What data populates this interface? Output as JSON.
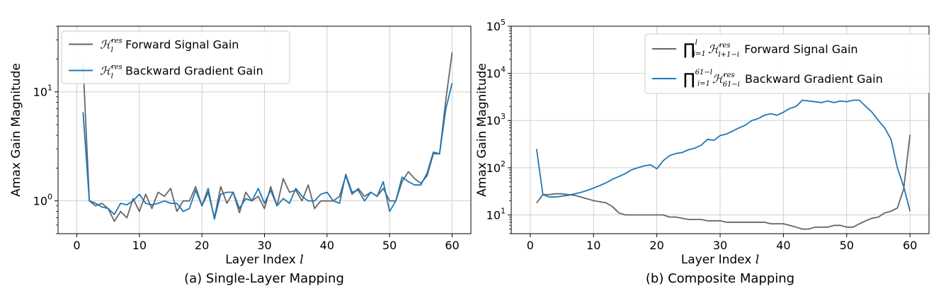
{
  "chart_data": [
    {
      "type": "line",
      "caption": "(a) Single-Layer Mapping",
      "xlabel": "Layer Index l",
      "ylabel": "Amax Gain Magnitude",
      "yscale": "log",
      "xlim": [
        -3,
        63
      ],
      "ylim": [
        0.5,
        40
      ],
      "xticks": [
        0,
        10,
        20,
        30,
        40,
        50,
        60
      ],
      "yticks": [
        {
          "value": 1,
          "label": "10^0"
        },
        {
          "value": 10,
          "label": "10^1"
        }
      ],
      "grid": true,
      "legend_position": "upper-left",
      "x": [
        1,
        2,
        3,
        4,
        5,
        6,
        7,
        8,
        9,
        10,
        11,
        12,
        13,
        14,
        15,
        16,
        17,
        18,
        19,
        20,
        21,
        22,
        23,
        24,
        25,
        26,
        27,
        28,
        29,
        30,
        31,
        32,
        33,
        34,
        35,
        36,
        37,
        38,
        39,
        40,
        41,
        42,
        43,
        44,
        45,
        46,
        47,
        48,
        49,
        50,
        51,
        52,
        53,
        54,
        55,
        56,
        57,
        58,
        59,
        60
      ],
      "series": [
        {
          "name": "H_l^res Forward Signal Gain",
          "legend_main": "Forward Signal Gain",
          "symbol": "ℋ",
          "symbol_sub": "l",
          "symbol_sup": "res",
          "color": "#666666",
          "values": [
            18,
            1.0,
            0.9,
            0.95,
            0.85,
            0.65,
            0.8,
            0.7,
            1.05,
            0.8,
            1.15,
            0.85,
            1.2,
            1.1,
            1.3,
            0.8,
            1.0,
            1.0,
            1.35,
            0.9,
            1.2,
            0.7,
            1.35,
            0.95,
            1.2,
            0.78,
            1.2,
            1.0,
            1.1,
            0.85,
            1.35,
            0.9,
            1.6,
            1.2,
            1.25,
            1.0,
            1.4,
            0.85,
            1.0,
            1.0,
            1.0,
            1.1,
            1.7,
            1.15,
            1.3,
            1.1,
            1.2,
            1.1,
            1.3,
            1.0,
            1.0,
            1.5,
            1.85,
            1.6,
            1.45,
            1.7,
            2.7,
            2.7,
            8.5,
            23
          ]
        },
        {
          "name": "H_l^res Backward Gradient Gain",
          "legend_main": "Backward Gradient Gain",
          "symbol": "ℋ",
          "symbol_sub": "l",
          "symbol_sup": "res",
          "color": "#1f77b4",
          "values": [
            6.5,
            1.0,
            0.95,
            0.88,
            0.85,
            0.75,
            0.95,
            0.92,
            1.0,
            1.15,
            0.95,
            0.92,
            0.95,
            1.0,
            0.95,
            0.95,
            0.8,
            0.85,
            1.25,
            0.9,
            1.3,
            0.68,
            1.15,
            1.2,
            1.2,
            0.85,
            1.05,
            1.0,
            1.3,
            0.95,
            1.25,
            0.9,
            1.05,
            0.95,
            1.3,
            1.1,
            1.0,
            1.0,
            1.15,
            1.2,
            1.0,
            0.95,
            1.75,
            1.2,
            1.25,
            1.0,
            1.2,
            1.1,
            1.5,
            0.8,
            1.0,
            1.65,
            1.5,
            1.4,
            1.4,
            1.8,
            2.8,
            2.7,
            7.0,
            12
          ]
        }
      ]
    },
    {
      "type": "line",
      "caption": "(b) Composite Mapping",
      "xlabel": "Layer Index l",
      "ylabel": "Amax Gain Magnitude",
      "yscale": "log",
      "xlim": [
        -3,
        63
      ],
      "ylim": [
        4,
        100000
      ],
      "xticks": [
        0,
        10,
        20,
        30,
        40,
        50,
        60
      ],
      "yticks": [
        {
          "value": 10,
          "label": "10^1"
        },
        {
          "value": 100,
          "label": "10^2"
        },
        {
          "value": 1000,
          "label": "10^3"
        },
        {
          "value": 10000,
          "label": "10^4"
        },
        {
          "value": 100000,
          "label": "10^5"
        }
      ],
      "grid": true,
      "legend_position": "upper-right",
      "x": [
        1,
        2,
        3,
        4,
        5,
        6,
        7,
        8,
        9,
        10,
        11,
        12,
        13,
        14,
        15,
        16,
        17,
        18,
        19,
        20,
        21,
        22,
        23,
        24,
        25,
        26,
        27,
        28,
        29,
        30,
        31,
        32,
        33,
        34,
        35,
        36,
        37,
        38,
        39,
        40,
        41,
        42,
        43,
        44,
        45,
        46,
        47,
        48,
        49,
        50,
        51,
        52,
        53,
        54,
        55,
        56,
        57,
        58,
        59,
        60
      ],
      "series": [
        {
          "name": "∏_{i=1}^{l} H_{l+1-i}^res Forward Signal Gain",
          "legend_main": "Forward Signal Gain",
          "symbol": "∏",
          "prod_sub": "i=1",
          "prod_sup": "l",
          "symbol_sub": "l+1−i",
          "symbol_sup": "res",
          "color": "#666666",
          "values": [
            18,
            27,
            27,
            28,
            28,
            27,
            26,
            24,
            22,
            20,
            19,
            18,
            15,
            11,
            10,
            10,
            10,
            10,
            10,
            10,
            10,
            9,
            9,
            8.5,
            8,
            8,
            8,
            7.5,
            7.5,
            7.5,
            7,
            7,
            7,
            7,
            7,
            7,
            7,
            6.5,
            6.5,
            6.5,
            6,
            5.5,
            5,
            5,
            5.5,
            5.5,
            5.5,
            6,
            6,
            5.5,
            5.5,
            6.5,
            7.5,
            8.5,
            9,
            11,
            12,
            14,
            35,
            500
          ]
        },
        {
          "name": "∏_{i=1}^{61-l} H_{61-i}^res Backward Gradient Gain",
          "legend_main": "Backward Gradient Gain",
          "symbol": "∏",
          "prod_sub": "i=1",
          "prod_sup": "61−l",
          "symbol_sub": "61−i",
          "symbol_sup": "res",
          "color": "#1f77b4",
          "values": [
            250,
            27,
            24,
            24,
            25,
            26,
            28,
            30,
            33,
            37,
            42,
            48,
            57,
            65,
            75,
            90,
            100,
            110,
            115,
            95,
            140,
            180,
            200,
            210,
            240,
            260,
            300,
            400,
            380,
            480,
            520,
            600,
            700,
            800,
            1000,
            1100,
            1300,
            1400,
            1300,
            1500,
            1800,
            2000,
            2700,
            2600,
            2500,
            2400,
            2600,
            2400,
            2600,
            2500,
            2700,
            2700,
            2000,
            1500,
            1000,
            700,
            400,
            100,
            40,
            12
          ]
        }
      ]
    }
  ]
}
